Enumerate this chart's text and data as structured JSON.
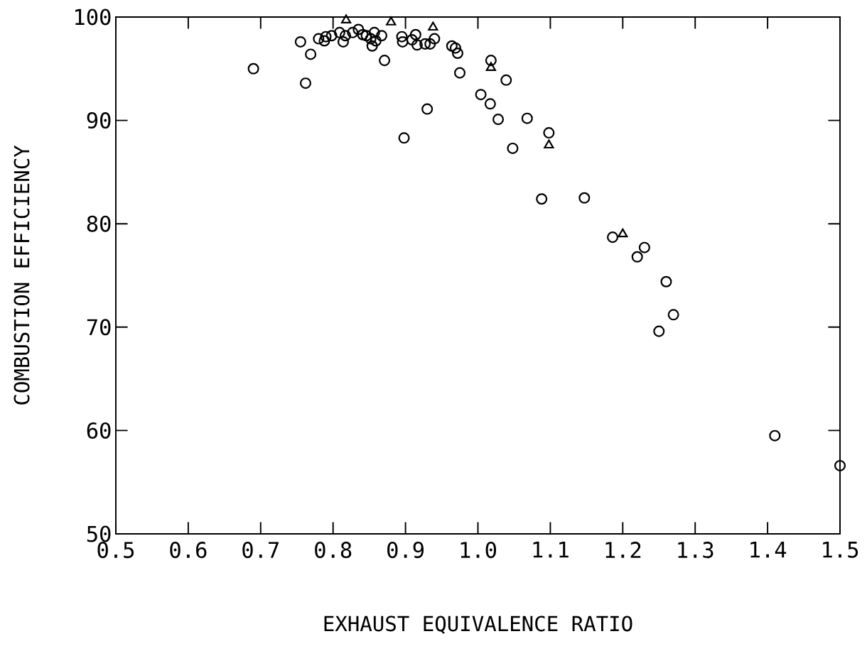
{
  "chart_data": {
    "type": "scatter",
    "xlabel": "EXHAUST EQUIVALENCE RATIO",
    "ylabel": "COMBUSTION EFFICIENCY",
    "xlim": [
      0.5,
      1.5
    ],
    "ylim": [
      50,
      100
    ],
    "xticks": [
      0.5,
      0.6,
      0.7,
      0.8,
      0.9,
      {
        "value": 1.0,
        "label": "1.0"
      },
      1.1,
      1.2,
      1.3,
      1.4,
      1.5
    ],
    "yticks": [
      50,
      60,
      70,
      80,
      90,
      100
    ],
    "grid": false,
    "series": [
      {
        "marker": "circle",
        "color": "#000000",
        "x": [
          0.69,
          0.755,
          0.762,
          0.769,
          0.78,
          0.788,
          0.79,
          0.798,
          0.809,
          0.814,
          0.817,
          0.827,
          0.835,
          0.841,
          0.846,
          0.852,
          0.854,
          0.857,
          0.859,
          0.867,
          0.871,
          0.895,
          0.896,
          0.898,
          0.909,
          0.914,
          0.916,
          0.93,
          0.927,
          0.934,
          0.94,
          0.964,
          0.969,
          0.972,
          0.975,
          1.004,
          1.017,
          1.018,
          1.028,
          1.039,
          1.048,
          1.068,
          1.088,
          1.098,
          1.147,
          1.186,
          1.22,
          1.23,
          1.25,
          1.26,
          1.27,
          1.41,
          1.5
        ],
        "values": [
          95.0,
          97.6,
          93.6,
          96.4,
          97.9,
          97.7,
          98.1,
          98.2,
          98.5,
          97.6,
          98.2,
          98.5,
          98.8,
          98.3,
          98.2,
          97.9,
          97.2,
          98.5,
          97.7,
          98.2,
          95.8,
          98.1,
          97.6,
          88.3,
          97.8,
          98.3,
          97.3,
          91.1,
          97.4,
          97.4,
          97.9,
          97.2,
          97.0,
          96.5,
          94.6,
          92.5,
          91.6,
          95.8,
          90.1,
          93.9,
          87.3,
          90.2,
          82.4,
          88.8,
          82.5,
          78.7,
          76.8,
          77.7,
          69.6,
          74.4,
          71.2,
          59.5,
          56.6
        ]
      },
      {
        "marker": "triangle",
        "color": "#000000",
        "x": [
          0.818,
          0.88,
          0.938,
          1.018,
          1.098,
          1.2
        ],
        "values": [
          99.7,
          99.5,
          99.0,
          95.1,
          87.6,
          79.0
        ]
      }
    ]
  }
}
